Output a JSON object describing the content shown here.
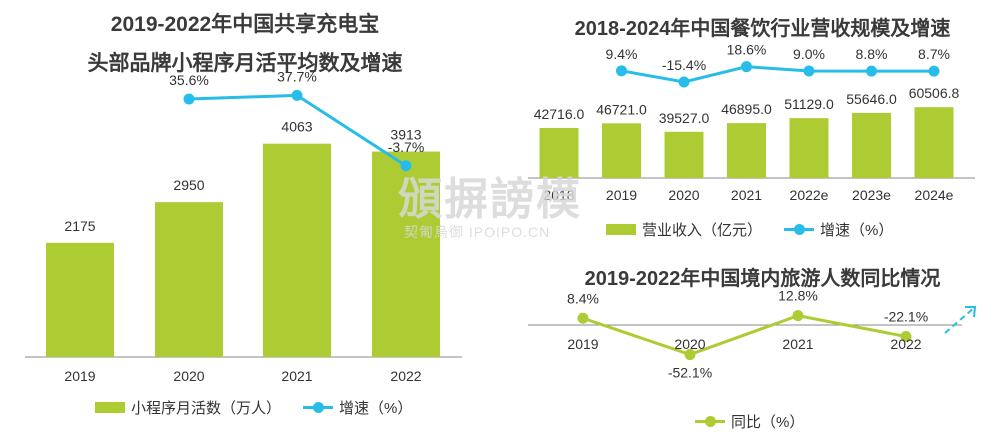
{
  "colors": {
    "bar": "#adcc33",
    "line_blue": "#27bde8",
    "line_green": "#adcc33",
    "axis": "#888888",
    "text": "#3a3a3a"
  },
  "watermark": {
    "main": "頒摒謗模",
    "sub": "契匍烏御 IPOIPO.CN"
  },
  "chart_data": [
    {
      "type": "bar",
      "title_line1": "2019-2022年中国共享充电宝",
      "title_line2": "头部品牌小程序月活平均数及增速",
      "categories": [
        "2019",
        "2020",
        "2021",
        "2022"
      ],
      "series": [
        {
          "name": "小程序月活数（万人）",
          "type": "bar",
          "values": [
            2175,
            2950,
            4063,
            3913
          ]
        },
        {
          "name": "增速（%）",
          "type": "line",
          "values": [
            null,
            35.6,
            37.7,
            -3.7
          ],
          "labels": [
            "",
            "35.6%",
            "37.7%",
            "-3.7%"
          ]
        }
      ],
      "legend": "bottom"
    },
    {
      "type": "bar",
      "title": "2018-2024年中国餐饮行业营收规模及增速",
      "categories": [
        "2018",
        "2019",
        "2020",
        "2021",
        "2022e",
        "2023e",
        "2024e"
      ],
      "series": [
        {
          "name": "营业收入（亿元）",
          "type": "bar",
          "values": [
            42716.0,
            46721.0,
            39527.0,
            46895.0,
            51129.0,
            55646.0,
            60506.8
          ],
          "labels": [
            "42716.0",
            "46721.0",
            "39527.0",
            "46895.0",
            "51129.0",
            "55646.0",
            "60506.8"
          ]
        },
        {
          "name": "增速（%）",
          "type": "line",
          "values": [
            null,
            9.4,
            -15.4,
            18.6,
            9.0,
            8.8,
            8.7
          ],
          "labels": [
            "",
            "9.4%",
            "-15.4%",
            "18.6%",
            "9.0%",
            "8.8%",
            "8.7%"
          ]
        }
      ],
      "legend": "bottom"
    },
    {
      "type": "line",
      "title": "2019-2022年中国境内旅游人数同比情况",
      "categories": [
        "2019",
        "2020",
        "2021",
        "2022"
      ],
      "series": [
        {
          "name": "同比（%）",
          "values": [
            8.4,
            -52.1,
            12.8,
            -22.1
          ],
          "labels": [
            "8.4%",
            "-52.1%",
            "12.8%",
            "-22.1%"
          ]
        }
      ],
      "legend": "bottom"
    }
  ]
}
